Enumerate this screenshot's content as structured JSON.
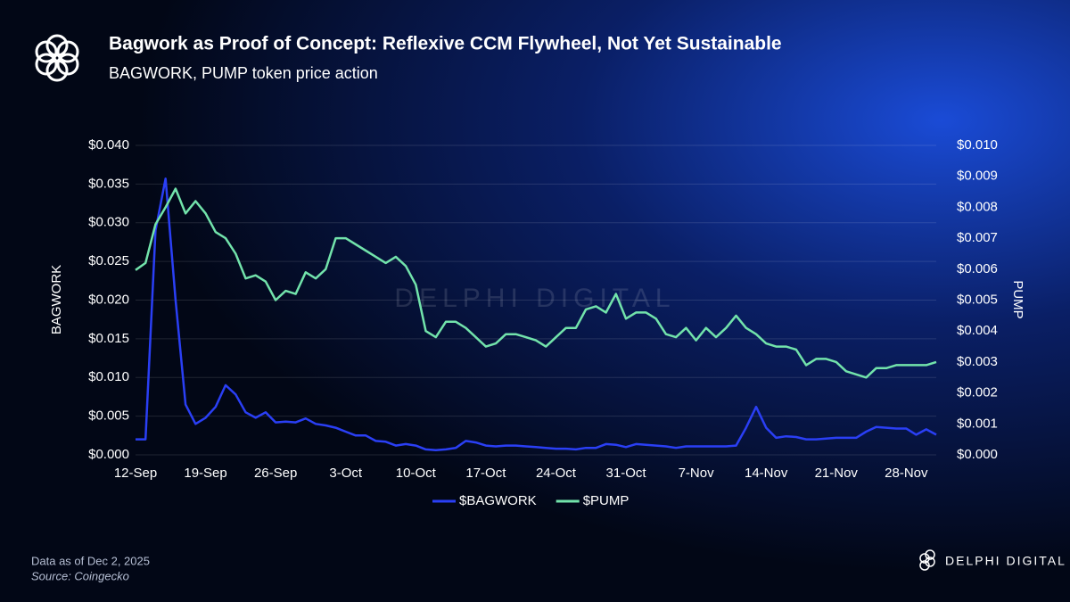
{
  "chart_data": {
    "type": "line",
    "title": "Bagwork as Proof of Concept: Reflexive CCM Flywheel, Not Yet Sustainable",
    "subtitle": "BAGWORK, PUMP token price action",
    "y_label": "BAGWORK",
    "y2_label": "PUMP",
    "footnote": "Data as of Dec 2, 2025",
    "source": "Source: Coingecko",
    "watermark": "DELPHI DIGITAL",
    "brand": "DELPHI DIGITAL",
    "categories": [
      "12-Sep",
      null,
      null,
      null,
      null,
      null,
      null,
      "19-Sep",
      null,
      null,
      null,
      null,
      null,
      null,
      "26-Sep",
      null,
      null,
      null,
      null,
      null,
      null,
      "3-Oct",
      null,
      null,
      null,
      null,
      null,
      null,
      "10-Oct",
      null,
      null,
      null,
      null,
      null,
      null,
      "17-Oct",
      null,
      null,
      null,
      null,
      null,
      null,
      "24-Oct",
      null,
      null,
      null,
      null,
      null,
      null,
      "31-Oct",
      null,
      null,
      null,
      null,
      null,
      null,
      "7-Nov",
      null,
      null,
      null,
      null,
      null,
      null,
      "14-Nov",
      null,
      null,
      null,
      null,
      null,
      null,
      "21-Nov",
      null,
      null,
      null,
      null,
      null,
      null,
      "28-Nov",
      null,
      null,
      null
    ],
    "series": [
      {
        "name": "$BAGWORK",
        "color": "#2a3ff5",
        "axis": "y",
        "values": [
          0.002,
          0.002,
          0.029,
          0.0357,
          0.02,
          0.0065,
          0.004,
          0.0048,
          0.0062,
          0.009,
          0.0078,
          0.0055,
          0.0048,
          0.0055,
          0.0042,
          0.0043,
          0.0042,
          0.0047,
          0.004,
          0.0038,
          0.0035,
          0.003,
          0.0025,
          0.0025,
          0.0018,
          0.0017,
          0.0012,
          0.0014,
          0.0012,
          0.0007,
          0.0006,
          0.0007,
          0.0009,
          0.0018,
          0.0016,
          0.0012,
          0.0011,
          0.0012,
          0.0012,
          0.0011,
          0.001,
          0.0009,
          0.0008,
          0.0008,
          0.0007,
          0.0009,
          0.0009,
          0.0014,
          0.0013,
          0.001,
          0.0014,
          0.0013,
          0.0012,
          0.0011,
          0.0009,
          0.0011,
          0.0011,
          0.0011,
          0.0011,
          0.0011,
          0.0012,
          0.0035,
          0.0062,
          0.0035,
          0.0022,
          0.0024,
          0.0023,
          0.002,
          0.002,
          0.0021,
          0.0022,
          0.0022,
          0.0022,
          0.003,
          0.0036,
          0.0035,
          0.0034,
          0.0034,
          0.0026,
          0.0033,
          0.0026
        ]
      },
      {
        "name": "$PUMP",
        "color": "#72e3ab",
        "axis": "y2",
        "values": [
          0.00597,
          0.0062,
          0.00745,
          0.008,
          0.0086,
          0.0078,
          0.0082,
          0.0078,
          0.0072,
          0.007,
          0.0065,
          0.0057,
          0.0058,
          0.0056,
          0.005,
          0.0053,
          0.0052,
          0.0059,
          0.0057,
          0.006,
          0.007,
          0.007,
          0.0068,
          0.0066,
          0.0064,
          0.0062,
          0.0064,
          0.0061,
          0.0055,
          0.004,
          0.0038,
          0.0043,
          0.0043,
          0.0041,
          0.0038,
          0.0035,
          0.0036,
          0.0039,
          0.0039,
          0.0038,
          0.0037,
          0.0035,
          0.0038,
          0.0041,
          0.0041,
          0.0047,
          0.0048,
          0.0046,
          0.0052,
          0.0044,
          0.0046,
          0.0046,
          0.0044,
          0.0039,
          0.0038,
          0.0041,
          0.0037,
          0.0041,
          0.0038,
          0.0041,
          0.0045,
          0.0041,
          0.0039,
          0.0036,
          0.0035,
          0.0035,
          0.0034,
          0.0029,
          0.0031,
          0.0031,
          0.003,
          0.0027,
          0.0026,
          0.0025,
          0.0028,
          0.0028,
          0.0029,
          0.0029,
          0.0029,
          0.0029,
          0.003
        ]
      }
    ],
    "ylim": [
      0,
      0.04
    ],
    "yticks": [
      {
        "value": 0,
        "label": "$0.000"
      },
      {
        "value": 0.005,
        "label": "$0.005"
      },
      {
        "value": 0.01,
        "label": "$0.010"
      },
      {
        "value": 0.015,
        "label": "$0.015"
      },
      {
        "value": 0.02,
        "label": "$0.020"
      },
      {
        "value": 0.025,
        "label": "$0.025"
      },
      {
        "value": 0.03,
        "label": "$0.030"
      },
      {
        "value": 0.035,
        "label": "$0.035"
      },
      {
        "value": 0.04,
        "label": "$0.040"
      }
    ],
    "y2lim": [
      0,
      0.01
    ],
    "y2ticks": [
      {
        "value": 0,
        "label": "$0.000"
      },
      {
        "value": 0.001,
        "label": "$0.001"
      },
      {
        "value": 0.002,
        "label": "$0.002"
      },
      {
        "value": 0.003,
        "label": "$0.003"
      },
      {
        "value": 0.004,
        "label": "$0.004"
      },
      {
        "value": 0.005,
        "label": "$0.005"
      },
      {
        "value": 0.006,
        "label": "$0.006"
      },
      {
        "value": 0.007,
        "label": "$0.007"
      },
      {
        "value": 0.008,
        "label": "$0.008"
      },
      {
        "value": 0.009,
        "label": "$0.009"
      },
      {
        "value": 0.01,
        "label": "$0.010"
      }
    ],
    "grid": true,
    "legend": "bottom"
  }
}
